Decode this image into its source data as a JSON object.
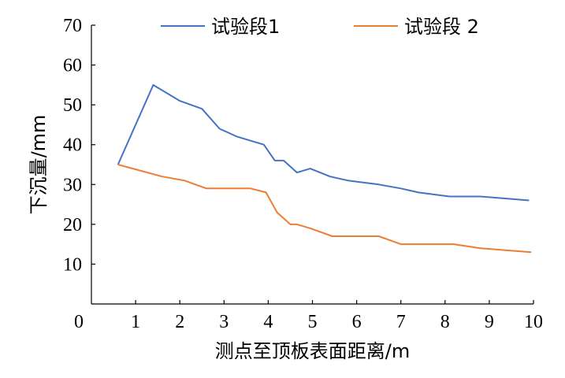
{
  "chart_data": {
    "type": "line",
    "xlabel": "测点至顶板表面距离/m",
    "ylabel": "下沉量/mm",
    "xlim": [
      0,
      10
    ],
    "ylim": [
      0,
      70
    ],
    "xticks": [
      0,
      1,
      2,
      3,
      4,
      5,
      6,
      7,
      8,
      9,
      10
    ],
    "yticks": [
      10,
      20,
      30,
      40,
      50,
      60,
      70
    ],
    "grid": false,
    "legend_position": "top",
    "series": [
      {
        "name": "试验段1",
        "color": "#4472C4",
        "x": [
          0.6,
          1.4,
          2.0,
          2.5,
          2.9,
          3.3,
          3.9,
          4.15,
          4.35,
          4.65,
          4.95,
          5.4,
          5.8,
          6.5,
          7.0,
          7.4,
          8.1,
          8.8,
          9.9
        ],
        "y": [
          35,
          55,
          51,
          49,
          44,
          42,
          40,
          36,
          36,
          33,
          34,
          32,
          31,
          30,
          29,
          28,
          27,
          27,
          26
        ]
      },
      {
        "name": "试验段 2",
        "color": "#ED7D31",
        "x": [
          0.6,
          1.6,
          2.1,
          2.6,
          3.0,
          3.6,
          3.95,
          4.2,
          4.5,
          4.65,
          4.95,
          5.45,
          5.9,
          6.5,
          7.0,
          7.4,
          8.2,
          8.8,
          9.95
        ],
        "y": [
          35,
          32,
          31,
          29,
          29,
          29,
          28,
          23,
          20,
          20,
          19,
          17,
          17,
          17,
          15,
          15,
          15,
          14,
          13
        ]
      }
    ]
  }
}
